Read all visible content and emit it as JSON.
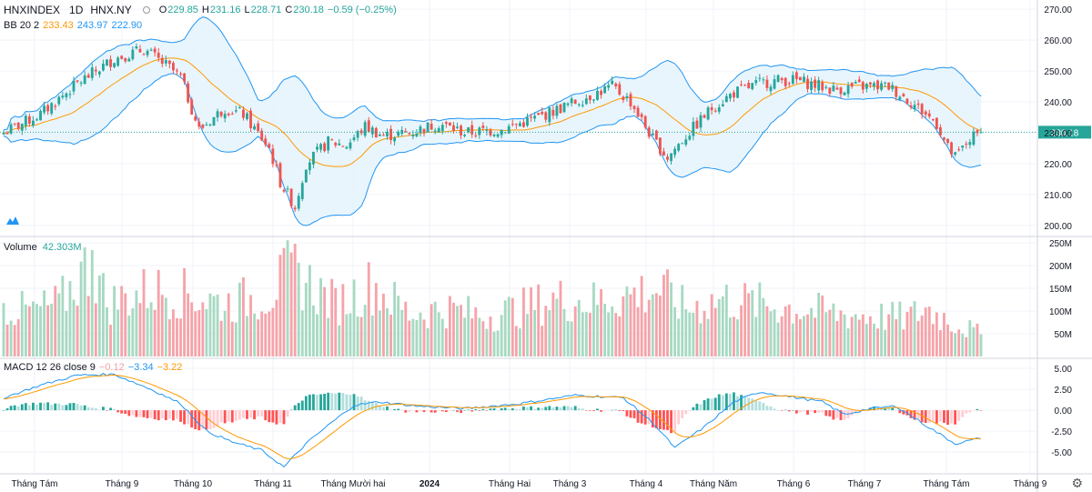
{
  "header": {
    "symbol": "HNXINDEX",
    "interval": "1D",
    "exchange": "HNX.NY",
    "ohlc": {
      "o_label": "O",
      "o": "229.85",
      "h_label": "H",
      "h": "231.16",
      "l_label": "L",
      "l": "228.71",
      "c_label": "C",
      "c": "230.18",
      "change": "−0.59 (−0.25%)"
    }
  },
  "bb_legend": {
    "label": "BB 20 2",
    "basis": "233.43",
    "upper": "243.97",
    "lower": "222.90"
  },
  "volume_legend": {
    "label": "Volume",
    "value": "42.303M"
  },
  "macd_legend": {
    "label": "MACD 12 26 close 9",
    "hist": "−0.12",
    "macd": "−3.34",
    "signal": "−3.22"
  },
  "colors": {
    "up": "#26a69a",
    "down": "#ef5350",
    "up_vol": "#a7d9c2",
    "down_vol": "#f5a3a9",
    "bb_fill": "#e3f2fd",
    "bb_line": "#2196f3",
    "basis": "#ff9800",
    "macd_line": "#2196f3",
    "signal_line": "#ff9800"
  },
  "chart_data": {
    "type": "candlestick",
    "price_axis": {
      "ticks": [
        "270.00",
        "260.00",
        "250.00",
        "240.00",
        "230.00",
        "220.00",
        "210.00",
        "200.00"
      ],
      "ylim": [
        197,
        273
      ],
      "last_price": "230.18"
    },
    "volume_axis": {
      "ticks": [
        "250M",
        "200M",
        "150M",
        "100M",
        "50M"
      ],
      "ylim": [
        0,
        260
      ]
    },
    "macd_axis": {
      "ticks": [
        "5.00",
        "2.50",
        "0.00",
        "-2.50",
        "-5.00"
      ],
      "ylim": [
        -7.5,
        6
      ]
    },
    "x_labels": [
      "Tháng Tám",
      "Tháng 9",
      "Tháng 10",
      "Tháng 11",
      "Tháng Mười hai",
      "2024",
      "Tháng Hai",
      "Tháng 3",
      "Tháng 4",
      "Tháng Năm",
      "Tháng 6",
      "Tháng 7",
      "Tháng Tám",
      "Tháng 9"
    ],
    "close_anchors": [
      [
        0,
        230
      ],
      [
        10,
        236
      ],
      [
        20,
        246
      ],
      [
        30,
        254
      ],
      [
        38,
        257
      ],
      [
        45,
        251
      ],
      [
        48,
        248
      ],
      [
        53,
        231
      ],
      [
        60,
        238
      ],
      [
        65,
        236
      ],
      [
        72,
        225
      ],
      [
        75,
        214
      ],
      [
        79,
        206
      ],
      [
        82,
        220
      ],
      [
        88,
        227
      ],
      [
        93,
        226
      ],
      [
        98,
        232
      ],
      [
        103,
        229
      ],
      [
        110,
        230
      ],
      [
        118,
        233
      ],
      [
        125,
        230
      ],
      [
        135,
        231
      ],
      [
        145,
        235
      ],
      [
        155,
        240
      ],
      [
        165,
        245
      ],
      [
        170,
        240
      ],
      [
        176,
        228
      ],
      [
        180,
        222
      ],
      [
        185,
        229
      ],
      [
        192,
        238
      ],
      [
        198,
        243
      ],
      [
        205,
        246
      ],
      [
        210,
        247
      ],
      [
        215,
        247
      ],
      [
        225,
        244
      ],
      [
        232,
        245
      ],
      [
        240,
        245
      ],
      [
        246,
        240
      ],
      [
        250,
        236
      ],
      [
        253,
        233
      ],
      [
        256,
        225
      ],
      [
        258,
        222
      ],
      [
        262,
        228
      ],
      [
        265,
        230
      ]
    ],
    "vol_anchors": [
      [
        0,
        100
      ],
      [
        8,
        95
      ],
      [
        15,
        110
      ],
      [
        24,
        200
      ],
      [
        28,
        110
      ],
      [
        40,
        140
      ],
      [
        50,
        130
      ],
      [
        60,
        110
      ],
      [
        72,
        130
      ],
      [
        78,
        180
      ],
      [
        90,
        110
      ],
      [
        100,
        150
      ],
      [
        110,
        90
      ],
      [
        120,
        100
      ],
      [
        130,
        85
      ],
      [
        140,
        100
      ],
      [
        150,
        120
      ],
      [
        160,
        115
      ],
      [
        170,
        130
      ],
      [
        178,
        140
      ],
      [
        185,
        100
      ],
      [
        195,
        120
      ],
      [
        205,
        110
      ],
      [
        215,
        100
      ],
      [
        225,
        90
      ],
      [
        235,
        85
      ],
      [
        245,
        80
      ],
      [
        250,
        100
      ],
      [
        258,
        70
      ],
      [
        265,
        45
      ]
    ],
    "macd_anchors": [
      [
        0,
        1.5
      ],
      [
        10,
        3.0
      ],
      [
        20,
        4.2
      ],
      [
        30,
        4.3
      ],
      [
        40,
        2.5
      ],
      [
        48,
        0.8
      ],
      [
        55,
        -2.5
      ],
      [
        62,
        -3.8
      ],
      [
        70,
        -4.8
      ],
      [
        76,
        -6.8
      ],
      [
        82,
        -4.0
      ],
      [
        88,
        -1.8
      ],
      [
        95,
        0.6
      ],
      [
        102,
        1.0
      ],
      [
        112,
        0.5
      ],
      [
        125,
        0.2
      ],
      [
        140,
        0.8
      ],
      [
        155,
        1.8
      ],
      [
        168,
        1.5
      ],
      [
        176,
        -1.5
      ],
      [
        182,
        -4.5
      ],
      [
        190,
        -2.0
      ],
      [
        198,
        1.0
      ],
      [
        205,
        2.2
      ],
      [
        215,
        1.5
      ],
      [
        222,
        1.0
      ],
      [
        228,
        -0.5
      ],
      [
        235,
        0.2
      ],
      [
        242,
        0.5
      ],
      [
        250,
        -1.8
      ],
      [
        258,
        -4.0
      ],
      [
        265,
        -3.34
      ]
    ],
    "bars": 266
  }
}
